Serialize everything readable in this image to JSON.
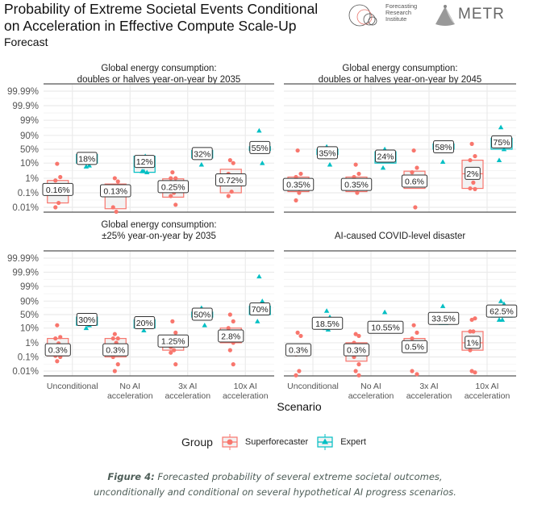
{
  "header": {
    "title_line1": "Probability of Extreme Societal Events Conditional",
    "title_line2": "on Acceleration in Effective Compute Scale-Up",
    "subtitle": "Forecast",
    "logos": {
      "fri": {
        "line1": "Forecasting",
        "line2": "Research",
        "line3": "Institute"
      },
      "metr": "METR"
    }
  },
  "legend": {
    "title": "Group",
    "items": [
      {
        "label": "Superforecaster",
        "color": "#F8766D",
        "shape": "circle"
      },
      {
        "label": "Expert",
        "color": "#00BFC4",
        "shape": "triangle"
      }
    ]
  },
  "caption": {
    "prefix": "Figure 4:",
    "line1": " Forecasted probability of several extreme societal outcomes,",
    "line2": "unconditionally and conditional on several hypothetical AI progress scenarios."
  },
  "chart_data": {
    "type": "boxplot+scatter (faceted, logit-scaled y)",
    "xlabel": "Scenario",
    "ylabel": "",
    "categories": [
      "Unconditional",
      "No AI acceleration",
      "3x AI acceleration",
      "10x AI acceleration"
    ],
    "category_lines": [
      [
        "Unconditional"
      ],
      [
        "No AI",
        "acceleration"
      ],
      [
        "3x AI",
        "acceleration"
      ],
      [
        "10x AI",
        "acceleration"
      ]
    ],
    "yticks": [
      "0.01%",
      "0.1%",
      "1%",
      "10%",
      "50%",
      "90%",
      "99%",
      "99.9%",
      "99.99%"
    ],
    "ytick_values": [
      0.0001,
      0.001,
      0.01,
      0.1,
      0.5,
      0.9,
      0.99,
      0.999,
      0.9999
    ],
    "grid": true,
    "legend_position": "bottom",
    "series_colors": {
      "Superforecaster": "#F8766D",
      "Expert": "#00BFC4"
    },
    "panels": [
      {
        "title": [
          "Global energy consumption:",
          "doubles or halves year-on-year by 2035"
        ],
        "groups": [
          {
            "scenario": "Unconditional",
            "group": "Superforecaster",
            "median_label": "0.16%",
            "median": 0.0016,
            "q1": 0.0002,
            "q3": 0.007,
            "points": [
              0.09,
              0.012,
              0.007,
              0.0002,
              0.0001
            ]
          },
          {
            "scenario": "Unconditional",
            "group": "Expert",
            "median_label": "18%",
            "median": 0.18,
            "q1": 0.1,
            "q3": 0.3,
            "points": [
              0.06,
              0.07,
              0.3
            ]
          },
          {
            "scenario": "No AI acceleration",
            "group": "Superforecaster",
            "median_label": "0.13%",
            "median": 0.0013,
            "q1": 8e-05,
            "q3": 0.004,
            "points": [
              0.01,
              0.006,
              0.0001,
              5e-05
            ]
          },
          {
            "scenario": "No AI acceleration",
            "group": "Expert",
            "median_label": "12%",
            "median": 0.12,
            "q1": 0.025,
            "q3": 0.25,
            "points": [
              0.03,
              0.025,
              0.03,
              0.25
            ]
          },
          {
            "scenario": "3x AI acceleration",
            "group": "Superforecaster",
            "median_label": "0.25%",
            "median": 0.0025,
            "q1": 0.0005,
            "q3": 0.009,
            "points": [
              0.025,
              0.01,
              0.01,
              0.001,
              0.0006,
              0.00015
            ]
          },
          {
            "scenario": "3x AI acceleration",
            "group": "Expert",
            "median_label": "32%",
            "median": 0.32,
            "q1": 0.2,
            "q3": 0.45,
            "points": [
              0.08,
              0.45
            ]
          },
          {
            "scenario": "10x AI acceleration",
            "group": "Superforecaster",
            "median_label": "0.72%",
            "median": 0.0072,
            "q1": 0.001,
            "q3": 0.04,
            "points": [
              0.15,
              0.1,
              0.02,
              0.0012,
              0.0006
            ]
          },
          {
            "scenario": "10x AI acceleration",
            "group": "Expert",
            "median_label": "55%",
            "median": 0.55,
            "q1": 0.45,
            "q3": 0.6,
            "points": [
              0.95,
              0.1
            ]
          }
        ]
      },
      {
        "title": [
          "Global energy consumption:",
          "doubles or halves year-on-year by 2045"
        ],
        "groups": [
          {
            "scenario": "Unconditional",
            "group": "Superforecaster",
            "median_label": "0.35%",
            "median": 0.0035,
            "q1": 0.0012,
            "q3": 0.012,
            "points": [
              0.45,
              0.02,
              0.012,
              0.001,
              0.0003
            ]
          },
          {
            "scenario": "Unconditional",
            "group": "Expert",
            "median_label": "35%",
            "median": 0.35,
            "q1": 0.3,
            "q3": 0.5,
            "points": [
              0.6,
              0.08
            ]
          },
          {
            "scenario": "No AI acceleration",
            "group": "Superforecaster",
            "median_label": "0.35%",
            "median": 0.0035,
            "q1": 0.0012,
            "q3": 0.012,
            "points": [
              0.08,
              0.02,
              0.012,
              0.001
            ]
          },
          {
            "scenario": "No AI acceleration",
            "group": "Expert",
            "median_label": "24%",
            "median": 0.24,
            "q1": 0.1,
            "q3": 0.4,
            "points": [
              0.5,
              0.4,
              0.05
            ]
          },
          {
            "scenario": "3x AI acceleration",
            "group": "Superforecaster",
            "median_label": "0.6%",
            "median": 0.006,
            "q1": 0.002,
            "q3": 0.03,
            "points": [
              0.45,
              0.05,
              0.025,
              0.0001
            ]
          },
          {
            "scenario": "3x AI acceleration",
            "group": "Expert",
            "median_label": "58%",
            "median": 0.58,
            "q1": 0.5,
            "q3": 0.7,
            "points": [
              0.12
            ]
          },
          {
            "scenario": "10x AI acceleration",
            "group": "Superforecaster",
            "median_label": "2%",
            "median": 0.02,
            "q1": 0.002,
            "q3": 0.15,
            "points": [
              0.7,
              0.25,
              0.15,
              0.005,
              0.002,
              0.0018
            ]
          },
          {
            "scenario": "10x AI acceleration",
            "group": "Expert",
            "median_label": "75%",
            "median": 0.75,
            "q1": 0.5,
            "q3": 0.85,
            "points": [
              0.97,
              0.5,
              0.15
            ]
          }
        ]
      },
      {
        "title": [
          "Global energy consumption:",
          "±25% year-on-year by 2035"
        ],
        "groups": [
          {
            "scenario": "Unconditional",
            "group": "Superforecaster",
            "median_label": "0.3%",
            "median": 0.003,
            "q1": 0.0012,
            "q3": 0.02,
            "points": [
              0.15,
              0.025,
              0.02,
              0.009,
              0.0012,
              0.001,
              0.0005
            ]
          },
          {
            "scenario": "Unconditional",
            "group": "Expert",
            "median_label": "30%",
            "median": 0.3,
            "q1": 0.15,
            "q3": 0.4,
            "points": [
              0.1,
              0.15
            ]
          },
          {
            "scenario": "No AI acceleration",
            "group": "Superforecaster",
            "median_label": "0.3%",
            "median": 0.003,
            "q1": 0.001,
            "q3": 0.02,
            "points": [
              0.04,
              0.02,
              0.02,
              0.01,
              0.001,
              0.0003,
              0.0001
            ]
          },
          {
            "scenario": "No AI acceleration",
            "group": "Expert",
            "median_label": "20%",
            "median": 0.2,
            "q1": 0.1,
            "q3": 0.3,
            "points": [
              0.07
            ]
          },
          {
            "scenario": "3x AI acceleration",
            "group": "Superforecaster",
            "median_label": "1.25%",
            "median": 0.0125,
            "q1": 0.003,
            "q3": 0.015,
            "points": [
              0.25,
              0.05,
              0.005,
              0.003,
              0.002,
              0.0003
            ]
          },
          {
            "scenario": "3x AI acceleration",
            "group": "Expert",
            "median_label": "50%",
            "median": 0.5,
            "q1": 0.4,
            "q3": 0.6,
            "points": [
              0.75,
              0.15
            ]
          },
          {
            "scenario": "10x AI acceleration",
            "group": "Superforecaster",
            "median_label": "2.8%",
            "median": 0.028,
            "q1": 0.01,
            "q3": 0.1,
            "points": [
              0.5,
              0.25,
              0.1,
              0.05,
              0.02,
              0.01,
              0.003,
              0.0003
            ]
          },
          {
            "scenario": "10x AI acceleration",
            "group": "Expert",
            "median_label": "70%",
            "median": 0.7,
            "q1": 0.5,
            "q3": 0.8,
            "points": [
              0.998,
              0.9,
              0.25
            ]
          }
        ]
      },
      {
        "title": [
          "AI-caused COVID-level disaster"
        ],
        "groups": [
          {
            "scenario": "Unconditional",
            "group": "Superforecaster",
            "median_label": "0.3%",
            "median": 0.003,
            "q1": 0.0015,
            "q3": 0.004,
            "points": [
              0.05,
              0.03,
              0.0015,
              0.0001,
              5e-05
            ]
          },
          {
            "scenario": "Unconditional",
            "group": "Expert",
            "median_label": "18.5%",
            "median": 0.185,
            "q1": 0.1,
            "q3": 0.3,
            "points": [
              0.65,
              0.4,
              0.1,
              0.08
            ]
          },
          {
            "scenario": "No AI acceleration",
            "group": "Superforecaster",
            "median_label": "0.3%",
            "median": 0.003,
            "q1": 0.0005,
            "q3": 0.01,
            "points": [
              0.04,
              0.03,
              0.01,
              0.003,
              0.001,
              0.0003,
              0.0001,
              5e-05
            ]
          },
          {
            "scenario": "No AI acceleration",
            "group": "Expert",
            "median_label": "10.55%",
            "median": 0.1055,
            "q1": 0.05,
            "q3": 0.15,
            "points": [
              0.6
            ]
          },
          {
            "scenario": "3x AI acceleration",
            "group": "Superforecaster",
            "median_label": "0.5%",
            "median": 0.005,
            "q1": 0.005,
            "q3": 0.02,
            "points": [
              0.15,
              0.05,
              0.02,
              0.005,
              0.0001,
              6e-05
            ]
          },
          {
            "scenario": "3x AI acceleration",
            "group": "Expert",
            "median_label": "33.5%",
            "median": 0.335,
            "q1": 0.2,
            "q3": 0.4,
            "points": [
              0.8,
              0.2,
              0.2
            ]
          },
          {
            "scenario": "10x AI acceleration",
            "group": "Superforecaster",
            "median_label": "1%",
            "median": 0.01,
            "q1": 0.003,
            "q3": 0.06,
            "points": [
              0.3,
              0.35,
              0.06,
              0.06,
              0.003,
              8e-05,
              0.0001
            ]
          },
          {
            "scenario": "10x AI acceleration",
            "group": "Expert",
            "median_label": "62.5%",
            "median": 0.625,
            "q1": 0.4,
            "q3": 0.8,
            "points": [
              0.9,
              0.85,
              0.3,
              0.3
            ]
          }
        ]
      }
    ]
  }
}
